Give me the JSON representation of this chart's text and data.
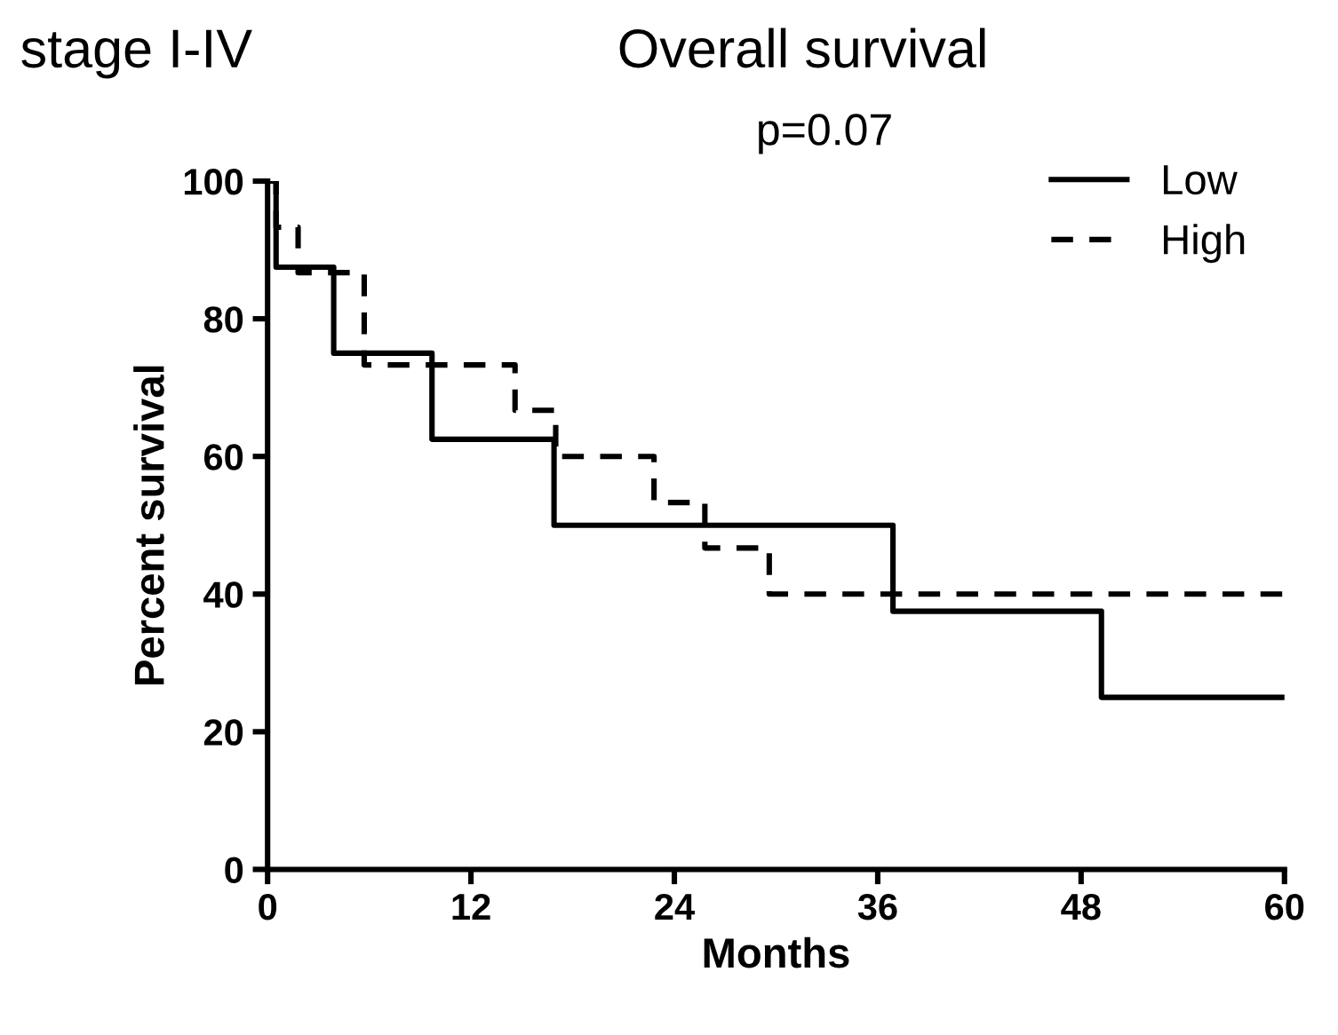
{
  "chart_data": {
    "type": "step",
    "title": "Overall survival",
    "xlabel": "Months",
    "ylabel": "Percent survival",
    "annotations": [
      "stage I-IV",
      "p=0.07"
    ],
    "series": [
      {
        "name": "Low",
        "color": "#000000",
        "line_style": "solid",
        "x": [
          0,
          0.5,
          3.9,
          9.7,
          16.9,
          36.9,
          49.2,
          60
        ],
        "values": [
          100,
          87.5,
          75,
          62.5,
          50,
          37.5,
          25,
          25
        ]
      },
      {
        "name": "High",
        "color": "#000000",
        "line_style": "dashed",
        "x": [
          0,
          0.5,
          1.8,
          5.7,
          14.6,
          17,
          22.8,
          25.8,
          29.6,
          60
        ],
        "values": [
          100,
          93.3,
          86.7,
          73.3,
          66.7,
          60,
          53.3,
          46.7,
          40,
          40
        ]
      }
    ],
    "xlim": [
      0,
      60
    ],
    "xticks": [
      0,
      12,
      24,
      36,
      48,
      60
    ],
    "ylim": [
      0,
      100
    ],
    "yticks": [
      0,
      20,
      40,
      60,
      80,
      100
    ],
    "legend": "top right",
    "grid": false
  }
}
